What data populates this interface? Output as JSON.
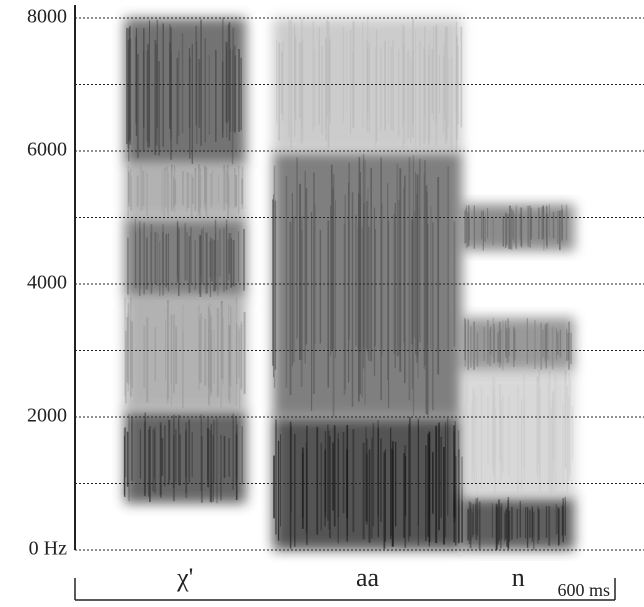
{
  "chart_data": {
    "type": "spectrogram",
    "ylim": [
      0,
      8000
    ],
    "yticks": [
      {
        "value": 0,
        "label": "0 Hz"
      },
      2000,
      4000,
      6000,
      8000
    ],
    "minor_yticks": [
      1000,
      3000,
      5000,
      7000
    ],
    "xlim": [
      0,
      600
    ],
    "xticks": [
      {
        "value": 600,
        "label": "600 ms"
      }
    ],
    "grid": true,
    "segments": [
      {
        "label": "χ'",
        "start": 55,
        "end": 190,
        "bands": [
          {
            "low": 700,
            "high": 2100,
            "color": "#333333"
          },
          {
            "low": 2100,
            "high": 3800,
            "color": "#999999"
          },
          {
            "low": 3800,
            "high": 5000,
            "color": "#555555"
          },
          {
            "low": 5000,
            "high": 5800,
            "color": "#999999"
          },
          {
            "low": 5800,
            "high": 8000,
            "color": "#444444"
          }
        ]
      },
      {
        "label": "aa",
        "start": 220,
        "end": 430,
        "bands": [
          {
            "low": 0,
            "high": 2000,
            "color": "#1a1a1a"
          },
          {
            "low": 2000,
            "high": 6000,
            "color": "#555555"
          },
          {
            "low": 6000,
            "high": 8000,
            "color": "#bbbbbb"
          }
        ]
      },
      {
        "label": "n",
        "start": 430,
        "end": 555,
        "bands": [
          {
            "low": 0,
            "high": 800,
            "color": "#2a2a2a"
          },
          {
            "low": 800,
            "high": 2700,
            "color": "#cccccc"
          },
          {
            "low": 2700,
            "high": 3500,
            "color": "#777777"
          },
          {
            "low": 4500,
            "high": 5200,
            "color": "#666666"
          }
        ]
      }
    ]
  }
}
